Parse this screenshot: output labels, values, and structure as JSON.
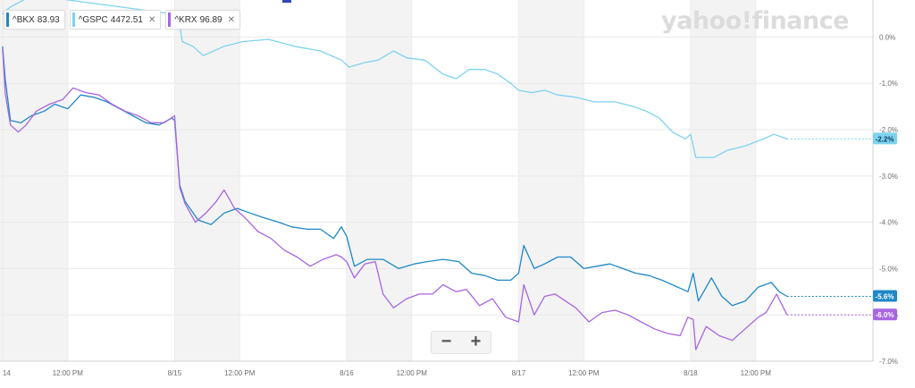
{
  "branding": {
    "watermark": "yahoo!finance"
  },
  "legend": [
    {
      "symbol": "^BKX",
      "price": "83.93",
      "color": "#1e88c7",
      "closable": false
    },
    {
      "symbol": "^GSPC",
      "price": "4472.51",
      "color": "#7dd3ef",
      "closable": true
    },
    {
      "symbol": "^KRX",
      "price": "96.89",
      "color": "#a865e0",
      "closable": true
    }
  ],
  "zoom": {
    "minus": "−",
    "plus": "+"
  },
  "chart_data": {
    "type": "line",
    "x_unit": "hours since 8/14 09:30 ET (trading hours only)",
    "xlim": [
      -0.1,
      33.4
    ],
    "ylim": [
      -7.0,
      0.8
    ],
    "y_ticks": [
      0,
      -1,
      -2,
      -3,
      -4,
      -5,
      -6,
      -7
    ],
    "y_tick_labels": [
      "0.0%",
      "-1.0%",
      "-2.0%",
      "-3.0%",
      "-4.0%",
      "-5.0%",
      "-6.0%",
      "-7.0%"
    ],
    "x_ticks": [
      {
        "x": 0.0,
        "label": "14"
      },
      {
        "x": 2.5,
        "label": "12:00 PM"
      },
      {
        "x": 6.6,
        "label": "8/15"
      },
      {
        "x": 9.1,
        "label": "12:00 PM"
      },
      {
        "x": 13.2,
        "label": "8/16"
      },
      {
        "x": 15.7,
        "label": "12:00 PM"
      },
      {
        "x": 19.8,
        "label": "8/17"
      },
      {
        "x": 22.3,
        "label": "12:00 PM"
      },
      {
        "x": 26.4,
        "label": "8/18"
      },
      {
        "x": 28.9,
        "label": "12:00 PM"
      }
    ],
    "shaded_bands": [
      [
        -0.1,
        2.5
      ],
      [
        6.6,
        9.1
      ],
      [
        13.2,
        15.7
      ],
      [
        19.8,
        22.3
      ],
      [
        26.4,
        28.9
      ]
    ],
    "grid": true,
    "legend_position": "top-left",
    "series": [
      {
        "name": "^GSPC",
        "color": "#7dd3ef",
        "end_label": "-2.2%",
        "points": [
          [
            0.0,
            0.5
          ],
          [
            0.3,
            0.65
          ],
          [
            0.8,
            0.8
          ],
          [
            1.2,
            0.9
          ],
          [
            6.5,
            0.5
          ],
          [
            6.7,
            0.55
          ],
          [
            6.9,
            -0.1
          ],
          [
            7.3,
            -0.2
          ],
          [
            7.7,
            -0.4
          ],
          [
            8.5,
            -0.2
          ],
          [
            9.2,
            -0.1
          ],
          [
            10.2,
            -0.05
          ],
          [
            11.2,
            -0.2
          ],
          [
            12.2,
            -0.3
          ],
          [
            13.0,
            -0.5
          ],
          [
            13.3,
            -0.65
          ],
          [
            13.9,
            -0.55
          ],
          [
            14.4,
            -0.5
          ],
          [
            15.0,
            -0.3
          ],
          [
            15.5,
            -0.45
          ],
          [
            16.2,
            -0.5
          ],
          [
            16.9,
            -0.8
          ],
          [
            17.4,
            -0.9
          ],
          [
            17.9,
            -0.7
          ],
          [
            18.5,
            -0.7
          ],
          [
            19.0,
            -0.8
          ],
          [
            19.5,
            -1.0
          ],
          [
            19.8,
            -1.15
          ],
          [
            20.3,
            -1.2
          ],
          [
            20.8,
            -1.15
          ],
          [
            21.3,
            -1.25
          ],
          [
            22.0,
            -1.3
          ],
          [
            22.7,
            -1.4
          ],
          [
            23.5,
            -1.4
          ],
          [
            24.2,
            -1.5
          ],
          [
            24.7,
            -1.6
          ],
          [
            25.2,
            -1.75
          ],
          [
            25.7,
            -2.05
          ],
          [
            26.2,
            -2.2
          ],
          [
            26.4,
            -2.1
          ],
          [
            26.6,
            -2.6
          ],
          [
            27.3,
            -2.6
          ],
          [
            27.8,
            -2.45
          ],
          [
            28.5,
            -2.35
          ],
          [
            29.2,
            -2.2
          ],
          [
            29.6,
            -2.1
          ],
          [
            30.1,
            -2.2
          ]
        ]
      },
      {
        "name": "^BKX",
        "color": "#1e88c7",
        "end_label": "-5.6%",
        "points": [
          [
            0.0,
            -0.2
          ],
          [
            0.1,
            -0.9
          ],
          [
            0.3,
            -1.8
          ],
          [
            0.7,
            -1.85
          ],
          [
            1.1,
            -1.7
          ],
          [
            1.6,
            -1.6
          ],
          [
            2.0,
            -1.45
          ],
          [
            2.5,
            -1.55
          ],
          [
            3.0,
            -1.25
          ],
          [
            3.5,
            -1.3
          ],
          [
            4.0,
            -1.4
          ],
          [
            4.5,
            -1.55
          ],
          [
            5.0,
            -1.7
          ],
          [
            5.5,
            -1.85
          ],
          [
            6.0,
            -1.9
          ],
          [
            6.5,
            -1.75
          ],
          [
            6.6,
            -1.8
          ],
          [
            6.8,
            -3.2
          ],
          [
            7.0,
            -3.55
          ],
          [
            7.5,
            -3.95
          ],
          [
            8.0,
            -4.05
          ],
          [
            8.5,
            -3.8
          ],
          [
            9.0,
            -3.7
          ],
          [
            9.5,
            -3.8
          ],
          [
            10.0,
            -3.9
          ],
          [
            10.6,
            -4.0
          ],
          [
            11.1,
            -4.1
          ],
          [
            11.7,
            -4.15
          ],
          [
            12.2,
            -4.15
          ],
          [
            12.7,
            -4.35
          ],
          [
            13.0,
            -4.1
          ],
          [
            13.2,
            -4.3
          ],
          [
            13.5,
            -4.95
          ],
          [
            14.0,
            -4.8
          ],
          [
            14.6,
            -4.8
          ],
          [
            15.2,
            -5.0
          ],
          [
            15.8,
            -4.9
          ],
          [
            16.3,
            -4.85
          ],
          [
            16.9,
            -4.8
          ],
          [
            17.5,
            -4.85
          ],
          [
            18.0,
            -5.1
          ],
          [
            18.5,
            -5.15
          ],
          [
            19.0,
            -5.25
          ],
          [
            19.5,
            -5.25
          ],
          [
            19.8,
            -5.1
          ],
          [
            20.0,
            -4.5
          ],
          [
            20.4,
            -5.0
          ],
          [
            20.8,
            -4.9
          ],
          [
            21.3,
            -4.75
          ],
          [
            21.8,
            -4.75
          ],
          [
            22.3,
            -5.0
          ],
          [
            22.8,
            -4.95
          ],
          [
            23.3,
            -4.9
          ],
          [
            23.8,
            -5.0
          ],
          [
            24.3,
            -5.1
          ],
          [
            24.8,
            -5.15
          ],
          [
            25.3,
            -5.25
          ],
          [
            25.9,
            -5.4
          ],
          [
            26.3,
            -5.5
          ],
          [
            26.5,
            -5.1
          ],
          [
            26.7,
            -5.7
          ],
          [
            27.2,
            -5.2
          ],
          [
            27.6,
            -5.6
          ],
          [
            28.0,
            -5.8
          ],
          [
            28.5,
            -5.7
          ],
          [
            29.0,
            -5.4
          ],
          [
            29.5,
            -5.3
          ],
          [
            29.8,
            -5.5
          ],
          [
            30.1,
            -5.6
          ]
        ]
      },
      {
        "name": "^KRX",
        "color": "#a865e0",
        "end_label": "-6.0%",
        "points": [
          [
            0.0,
            -0.25
          ],
          [
            0.1,
            -1.2
          ],
          [
            0.3,
            -1.9
          ],
          [
            0.6,
            -2.05
          ],
          [
            0.9,
            -1.9
          ],
          [
            1.3,
            -1.6
          ],
          [
            1.8,
            -1.45
          ],
          [
            2.3,
            -1.35
          ],
          [
            2.7,
            -1.1
          ],
          [
            3.2,
            -1.2
          ],
          [
            3.7,
            -1.25
          ],
          [
            4.2,
            -1.45
          ],
          [
            4.7,
            -1.6
          ],
          [
            5.2,
            -1.7
          ],
          [
            5.7,
            -1.85
          ],
          [
            6.2,
            -1.85
          ],
          [
            6.6,
            -1.7
          ],
          [
            6.8,
            -3.25
          ],
          [
            7.0,
            -3.6
          ],
          [
            7.4,
            -4.0
          ],
          [
            7.8,
            -3.8
          ],
          [
            8.2,
            -3.55
          ],
          [
            8.5,
            -3.3
          ],
          [
            8.9,
            -3.7
          ],
          [
            9.3,
            -3.9
          ],
          [
            9.8,
            -4.2
          ],
          [
            10.3,
            -4.35
          ],
          [
            10.8,
            -4.6
          ],
          [
            11.3,
            -4.75
          ],
          [
            11.8,
            -4.95
          ],
          [
            12.3,
            -4.8
          ],
          [
            12.8,
            -4.7
          ],
          [
            13.0,
            -4.75
          ],
          [
            13.2,
            -4.85
          ],
          [
            13.5,
            -5.2
          ],
          [
            13.9,
            -4.9
          ],
          [
            14.3,
            -4.85
          ],
          [
            14.6,
            -5.55
          ],
          [
            15.0,
            -5.85
          ],
          [
            15.5,
            -5.65
          ],
          [
            16.0,
            -5.55
          ],
          [
            16.5,
            -5.55
          ],
          [
            16.9,
            -5.35
          ],
          [
            17.4,
            -5.5
          ],
          [
            17.8,
            -5.45
          ],
          [
            18.3,
            -5.8
          ],
          [
            18.8,
            -5.65
          ],
          [
            19.3,
            -6.05
          ],
          [
            19.8,
            -6.15
          ],
          [
            20.0,
            -5.35
          ],
          [
            20.4,
            -6.0
          ],
          [
            20.8,
            -5.6
          ],
          [
            21.2,
            -5.55
          ],
          [
            21.6,
            -5.7
          ],
          [
            22.0,
            -5.85
          ],
          [
            22.5,
            -6.15
          ],
          [
            23.0,
            -5.95
          ],
          [
            23.5,
            -5.9
          ],
          [
            24.0,
            -6.0
          ],
          [
            24.5,
            -6.15
          ],
          [
            25.0,
            -6.3
          ],
          [
            25.5,
            -6.4
          ],
          [
            26.0,
            -6.45
          ],
          [
            26.3,
            -6.05
          ],
          [
            26.5,
            -6.1
          ],
          [
            26.6,
            -6.75
          ],
          [
            27.0,
            -6.25
          ],
          [
            27.5,
            -6.45
          ],
          [
            28.0,
            -6.55
          ],
          [
            28.5,
            -6.3
          ],
          [
            29.0,
            -6.05
          ],
          [
            29.3,
            -5.95
          ],
          [
            29.7,
            -5.55
          ],
          [
            30.1,
            -6.0
          ]
        ]
      }
    ]
  }
}
